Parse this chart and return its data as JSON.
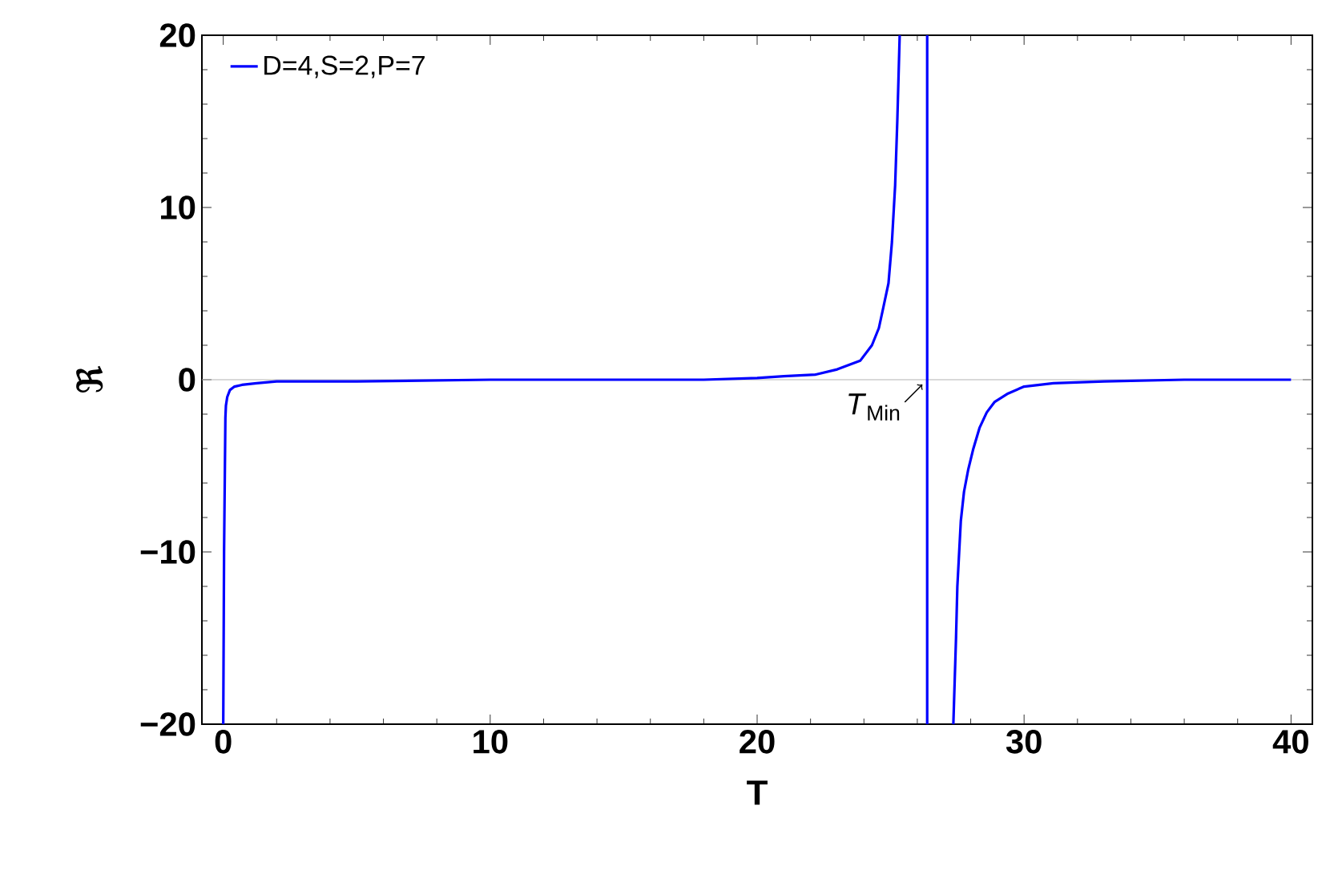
{
  "chart_data": {
    "type": "line",
    "xlabel": "T",
    "ylabel": "ℜ",
    "xlim": [
      -0.8,
      40.8
    ],
    "ylim": [
      -20,
      20
    ],
    "xticks": [
      0,
      10,
      20,
      30,
      40
    ],
    "yticks": [
      {
        "value": -20,
        "label": "−20"
      },
      {
        "value": -10,
        "label": "−10"
      },
      0,
      10,
      20
    ],
    "legend": "top left",
    "grid": false,
    "marker": "none",
    "line_style": "solid",
    "series": [
      {
        "name": "D=4,S=2,P=7",
        "color": "#0000ff",
        "x": [
          0.0,
          0.03,
          0.08,
          0.1,
          0.15,
          0.2,
          0.25,
          0.42,
          0.7,
          1.25,
          2,
          3,
          5,
          10,
          15,
          18,
          20,
          21,
          22.2,
          23,
          23.86,
          24.3,
          24.56,
          24.7,
          24.92,
          25.05,
          25.17,
          25.25,
          25.34,
          null,
          26.37,
          26.37,
          null,
          27.35,
          27.45,
          27.5,
          27.63,
          27.75,
          27.91,
          28.1,
          28.33,
          28.6,
          28.89,
          29.4,
          30,
          31.1,
          33,
          36,
          40
        ],
        "values": [
          -20,
          -10,
          -2.2,
          -1.5,
          -1.0,
          -0.8,
          -0.6,
          -0.4,
          -0.3,
          -0.2,
          -0.1,
          -0.1,
          -0.1,
          0,
          0,
          0,
          0.1,
          0.2,
          0.3,
          0.6,
          1.1,
          2.0,
          3.0,
          4.0,
          5.6,
          8.0,
          11.3,
          15,
          20,
          null,
          20,
          -20,
          null,
          -20,
          -15,
          -12,
          -8.2,
          -6.5,
          -5.2,
          -4,
          -2.8,
          -1.9,
          -1.3,
          -0.8,
          -0.4,
          -0.2,
          -0.1,
          0,
          0
        ]
      }
    ],
    "ref_lines": [
      {
        "axis": "y",
        "value": 0,
        "color": "#b3b3b3"
      }
    ],
    "annotations": [
      {
        "text": "*T*$_{Min}$",
        "x": 26.37,
        "y": 0
      }
    ]
  }
}
